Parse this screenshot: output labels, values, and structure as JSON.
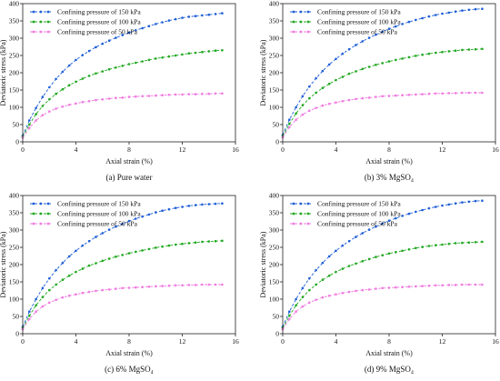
{
  "chart_data": [
    {
      "type": "line",
      "caption": "(a) Pure water",
      "xlabel": "Axial strain (%)",
      "ylabel": "Deviatoric stress (kPa)",
      "xlim": [
        0,
        16
      ],
      "ylim": [
        0,
        400
      ],
      "xticks": [
        "0",
        "4",
        "8",
        "12",
        "16"
      ],
      "yticks": [
        "0",
        "50",
        "100",
        "150",
        "200",
        "250",
        "300",
        "350",
        "400"
      ],
      "legend_position": "top-left",
      "x": [
        0,
        0.5,
        1,
        1.5,
        2,
        2.5,
        3,
        3.5,
        4,
        4.5,
        5,
        5.5,
        6,
        6.5,
        7,
        7.5,
        8,
        8.5,
        9,
        9.5,
        10,
        10.5,
        11,
        11.5,
        12,
        12.5,
        13,
        13.5,
        14,
        14.5,
        15
      ],
      "series": [
        {
          "name": "Confining pressure of 150 kPa",
          "color": "#1f5fd6",
          "values": [
            18,
            62,
            98,
            130,
            158,
            182,
            203,
            221,
            237,
            251,
            263,
            274,
            284,
            293,
            301,
            309,
            316,
            323,
            329,
            335,
            341,
            346,
            351,
            355,
            359,
            362,
            364,
            366,
            368,
            370,
            372
          ]
        },
        {
          "name": "Confining pressure of 100 kPa",
          "color": "#1fa81f",
          "values": [
            15,
            50,
            80,
            104,
            123,
            139,
            152,
            164,
            174,
            183,
            191,
            198,
            204,
            210,
            215,
            220,
            225,
            229,
            233,
            237,
            241,
            244,
            247,
            250,
            253,
            256,
            258,
            260,
            262,
            264,
            265
          ]
        },
        {
          "name": "Confining pressure of 50 kPa",
          "color": "#f07ae0",
          "values": [
            12,
            40,
            62,
            77,
            88,
            96,
            102,
            107,
            111,
            115,
            118,
            121,
            123,
            125,
            127,
            128,
            130,
            131,
            132,
            133,
            134,
            135,
            136,
            137,
            137,
            138,
            138,
            139,
            139,
            140,
            140
          ]
        }
      ]
    },
    {
      "type": "line",
      "caption": "(b) 3% MgSO₄",
      "xlabel": "Axial strain (%)",
      "ylabel": "Deviatoric stress (kPa)",
      "xlim": [
        0,
        16
      ],
      "ylim": [
        0,
        400
      ],
      "xticks": [
        "0",
        "4",
        "8",
        "12",
        "16"
      ],
      "yticks": [
        "0",
        "50",
        "100",
        "150",
        "200",
        "250",
        "300",
        "350",
        "400"
      ],
      "legend_position": "top-left",
      "x": [
        0,
        0.5,
        1,
        1.5,
        2,
        2.5,
        3,
        3.5,
        4,
        4.5,
        5,
        5.5,
        6,
        6.5,
        7,
        7.5,
        8,
        8.5,
        9,
        9.5,
        10,
        10.5,
        11,
        11.5,
        12,
        12.5,
        13,
        13.5,
        14,
        14.5,
        15
      ],
      "series": [
        {
          "name": "Confining pressure of 150 kPa",
          "color": "#1f5fd6",
          "values": [
            20,
            64,
            100,
            132,
            160,
            184,
            205,
            224,
            240,
            255,
            268,
            280,
            291,
            301,
            310,
            319,
            327,
            334,
            341,
            347,
            353,
            358,
            363,
            367,
            371,
            374,
            377,
            380,
            382,
            384,
            385
          ]
        },
        {
          "name": "Confining pressure of 100 kPa",
          "color": "#1fa81f",
          "values": [
            16,
            52,
            82,
            106,
            126,
            142,
            156,
            168,
            179,
            188,
            197,
            204,
            211,
            217,
            223,
            228,
            233,
            237,
            241,
            245,
            249,
            252,
            255,
            258,
            260,
            262,
            264,
            266,
            267,
            268,
            269
          ]
        },
        {
          "name": "Confining pressure of 50 kPa",
          "color": "#f07ae0",
          "values": [
            13,
            42,
            64,
            79,
            90,
            98,
            105,
            110,
            114,
            118,
            121,
            124,
            126,
            128,
            130,
            132,
            133,
            134,
            135,
            136,
            137,
            138,
            139,
            140,
            140,
            141,
            141,
            142,
            142,
            142,
            142
          ]
        }
      ]
    },
    {
      "type": "line",
      "caption": "(c) 6% MgSO₄",
      "xlabel": "Axial strain (%)",
      "ylabel": "Deviatoric stress (kPa)",
      "xlim": [
        0,
        16
      ],
      "ylim": [
        0,
        400
      ],
      "xticks": [
        "0",
        "4",
        "8",
        "12",
        "16"
      ],
      "yticks": [
        "0",
        "50",
        "100",
        "150",
        "200",
        "250",
        "300",
        "350",
        "400"
      ],
      "legend_position": "top-left",
      "x": [
        0,
        0.5,
        1,
        1.5,
        2,
        2.5,
        3,
        3.5,
        4,
        4.5,
        5,
        5.5,
        6,
        6.5,
        7,
        7.5,
        8,
        8.5,
        9,
        9.5,
        10,
        10.5,
        11,
        11.5,
        12,
        12.5,
        13,
        13.5,
        14,
        14.5,
        15
      ],
      "series": [
        {
          "name": "Confining pressure of 150 kPa",
          "color": "#1f5fd6",
          "values": [
            20,
            64,
            100,
            132,
            160,
            184,
            205,
            224,
            240,
            255,
            268,
            280,
            291,
            301,
            310,
            318,
            326,
            333,
            339,
            345,
            351,
            356,
            360,
            364,
            367,
            370,
            372,
            374,
            375,
            376,
            377
          ]
        },
        {
          "name": "Confining pressure of 100 kPa",
          "color": "#1fa81f",
          "values": [
            16,
            52,
            82,
            106,
            126,
            142,
            156,
            168,
            179,
            188,
            197,
            204,
            211,
            217,
            223,
            228,
            233,
            237,
            241,
            245,
            249,
            252,
            255,
            258,
            260,
            262,
            264,
            266,
            267,
            268,
            269
          ]
        },
        {
          "name": "Confining pressure of 50 kPa",
          "color": "#f07ae0",
          "values": [
            13,
            42,
            64,
            79,
            90,
            98,
            105,
            110,
            114,
            118,
            121,
            124,
            126,
            128,
            130,
            132,
            133,
            134,
            135,
            136,
            137,
            138,
            139,
            140,
            140,
            141,
            141,
            142,
            142,
            142,
            142
          ]
        }
      ]
    },
    {
      "type": "line",
      "caption": "(d) 9% MgSO₄",
      "xlabel": "Axial strain (%)",
      "ylabel": "Deviatoric stress (kPa)",
      "xlim": [
        0,
        16
      ],
      "ylim": [
        0,
        400
      ],
      "xticks": [
        "0",
        "4",
        "8",
        "12",
        "16"
      ],
      "yticks": [
        "0",
        "50",
        "100",
        "150",
        "200",
        "250",
        "300",
        "350",
        "400"
      ],
      "legend_position": "top-left",
      "x": [
        0,
        0.5,
        1,
        1.5,
        2,
        2.5,
        3,
        3.5,
        4,
        4.5,
        5,
        5.5,
        6,
        6.5,
        7,
        7.5,
        8,
        8.5,
        9,
        9.5,
        10,
        10.5,
        11,
        11.5,
        12,
        12.5,
        13,
        13.5,
        14,
        14.5,
        15
      ],
      "series": [
        {
          "name": "Confining pressure of 150 kPa",
          "color": "#1f5fd6",
          "values": [
            20,
            64,
            100,
            132,
            160,
            184,
            205,
            224,
            240,
            255,
            268,
            280,
            291,
            301,
            310,
            319,
            327,
            334,
            341,
            347,
            353,
            358,
            363,
            367,
            371,
            374,
            377,
            380,
            382,
            384,
            385
          ]
        },
        {
          "name": "Confining pressure of 100 kPa",
          "color": "#1fa81f",
          "values": [
            16,
            52,
            82,
            106,
            126,
            142,
            156,
            168,
            179,
            188,
            196,
            203,
            210,
            216,
            222,
            227,
            232,
            236,
            240,
            244,
            248,
            251,
            254,
            256,
            258,
            260,
            262,
            263,
            264,
            265,
            266
          ]
        },
        {
          "name": "Confining pressure of 50 kPa",
          "color": "#f07ae0",
          "values": [
            13,
            42,
            64,
            79,
            90,
            98,
            105,
            110,
            114,
            118,
            121,
            124,
            126,
            128,
            130,
            132,
            133,
            134,
            135,
            136,
            137,
            138,
            139,
            140,
            140,
            141,
            141,
            142,
            142,
            142,
            142
          ]
        }
      ]
    }
  ]
}
